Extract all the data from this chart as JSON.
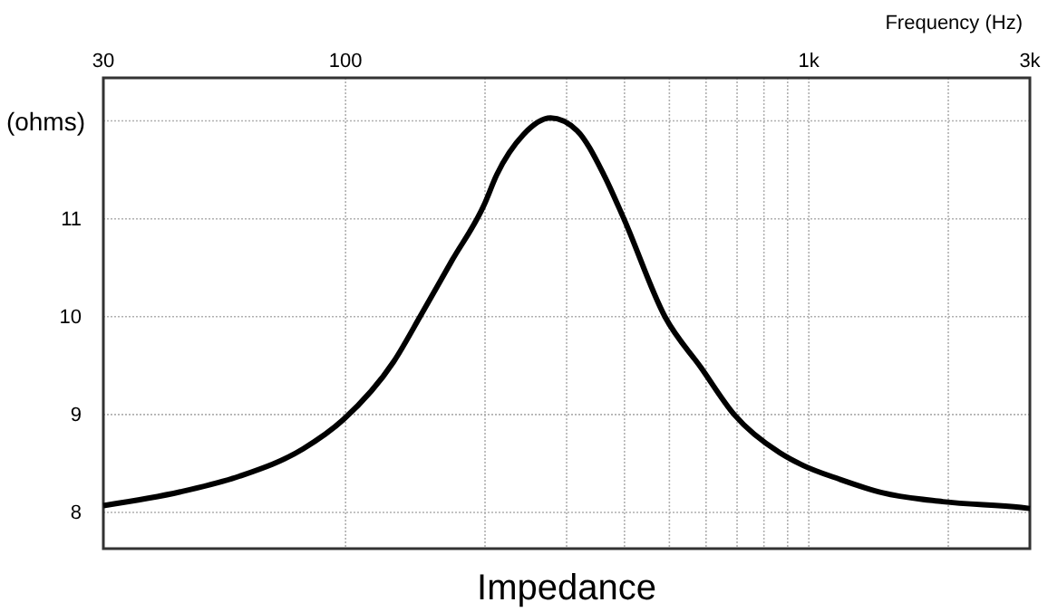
{
  "chart_data": {
    "type": "line",
    "title": "Impedance",
    "xlabel": "Frequency (Hz)",
    "ylabel": "(ohms)",
    "log": "x",
    "grid": true,
    "marker": "none",
    "line_style": "solid",
    "xlim": [
      30,
      3000
    ],
    "ylim": [
      7.63,
      12.44
    ],
    "xticks": [
      30,
      100,
      {
        "value": 200,
        "label": null
      },
      {
        "value": 300,
        "label": null
      },
      {
        "value": 400,
        "label": null
      },
      {
        "value": 500,
        "label": null
      },
      {
        "value": 600,
        "label": null
      },
      {
        "value": 700,
        "label": null
      },
      {
        "value": 800,
        "label": null
      },
      {
        "value": 900,
        "label": null
      },
      {
        "value": 1000,
        "label": "1k"
      },
      {
        "value": 2000,
        "label": null
      },
      {
        "value": 3000,
        "label": "3k"
      }
    ],
    "yticks": [
      8,
      9,
      10,
      11,
      {
        "value": 12,
        "label": null
      }
    ],
    "series": [
      {
        "color": "#000000",
        "x": [
          30,
          44,
          59,
          81,
          99,
          127,
          146,
          170,
          199,
          212,
          242,
          277,
          316,
          361,
          398,
          489,
          585,
          690,
          865,
          972,
          1164,
          1445,
          1946,
          2872,
          3000
        ],
        "values": [
          8.07,
          8.21,
          8.37,
          8.65,
          8.95,
          9.54,
          10.03,
          10.58,
          11.14,
          11.45,
          11.86,
          12.03,
          11.9,
          11.45,
          11.01,
          10.0,
          9.48,
          9.0,
          8.61,
          8.48,
          8.34,
          8.2,
          8.11,
          8.05,
          8.04
        ]
      }
    ]
  }
}
